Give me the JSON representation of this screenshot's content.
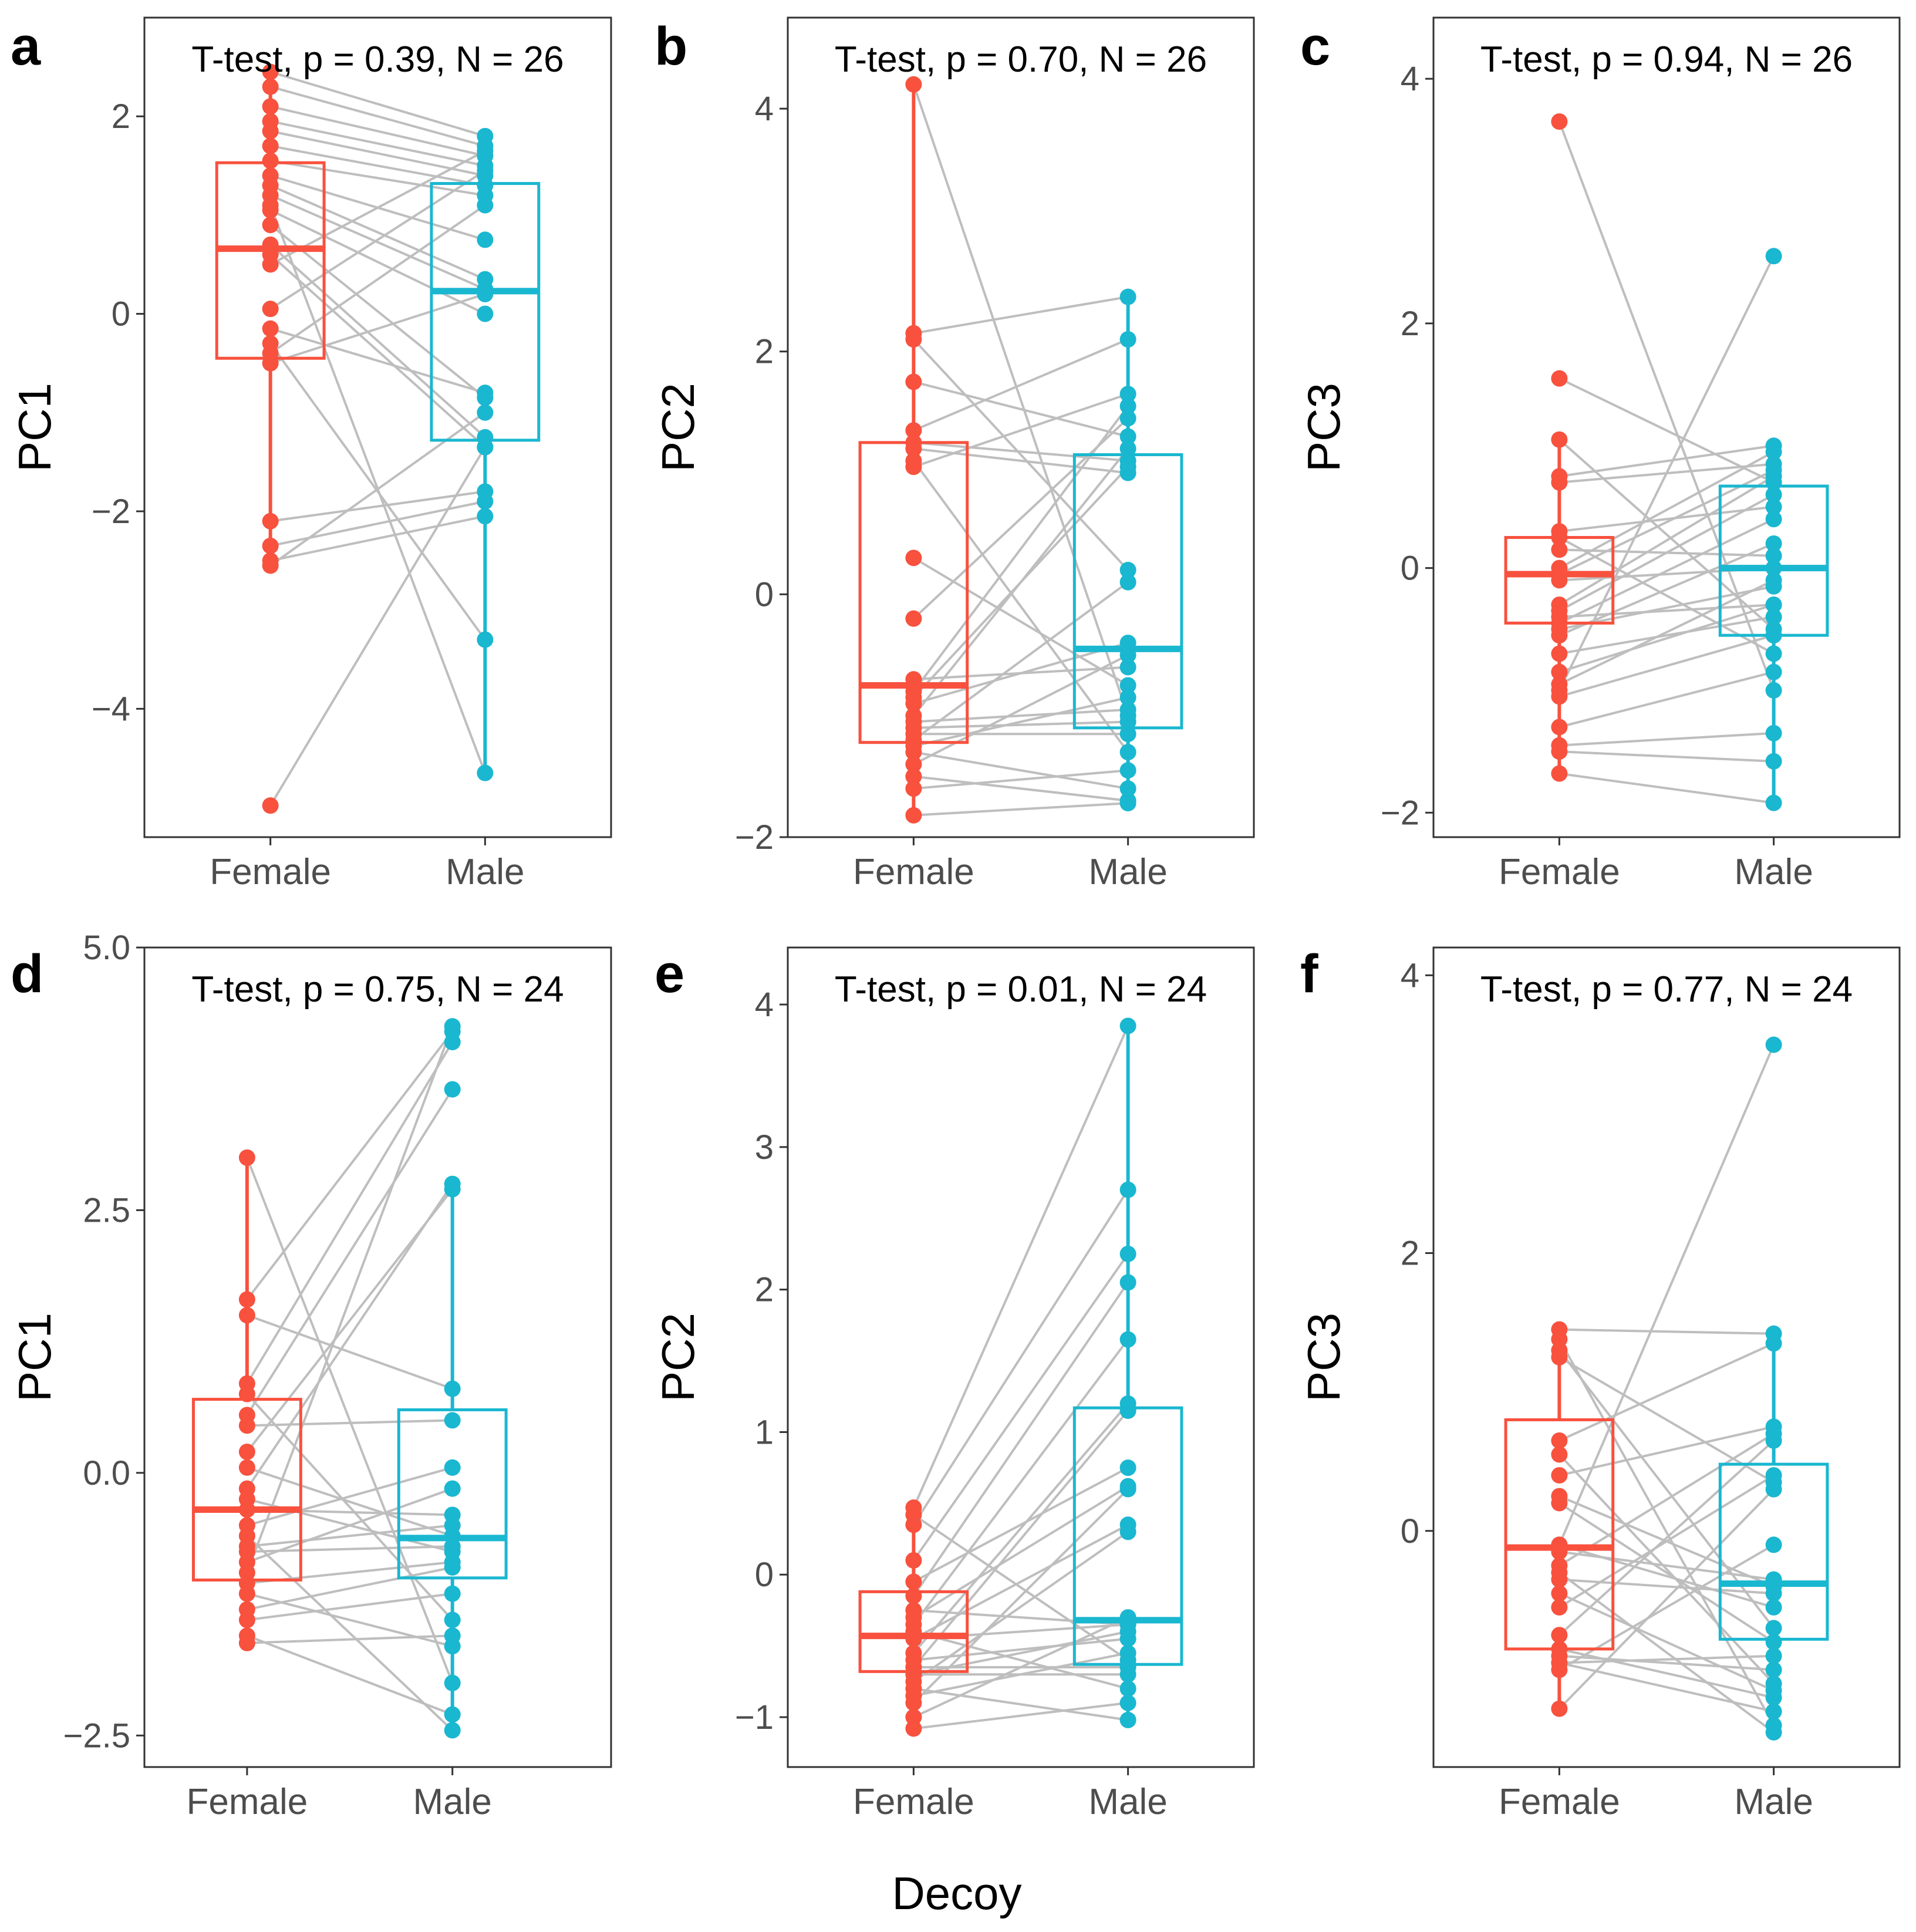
{
  "figure": {
    "xlabel_common": "Decoy",
    "groups": [
      "Female",
      "Male"
    ],
    "colors": {
      "Female": "#F8513E",
      "Male": "#1AB7D0",
      "pair_line": "#BEBEBE",
      "axis": "#333333",
      "text": "#000000"
    }
  },
  "chart_data": [
    {
      "type": "box_paired_dot",
      "panel": "a",
      "ylabel": "PC1",
      "annotation": "T-test, p =  0.39, N = 26",
      "ylim": [
        -5.3,
        3.0
      ],
      "yticks": [
        2,
        0,
        -2,
        -4
      ],
      "categories": [
        "Female",
        "Male"
      ],
      "box": {
        "Female": {
          "q1": -0.45,
          "median": 0.66,
          "q3": 1.53,
          "whisker_low": -2.55,
          "whisker_high": 2.45
        },
        "Male": {
          "q1": -1.28,
          "median": 0.23,
          "q3": 1.32,
          "whisker_low": -4.65,
          "whisker_high": 1.8
        }
      },
      "pairs": [
        [
          2.45,
          1.8
        ],
        [
          2.3,
          1.7
        ],
        [
          2.1,
          1.6
        ],
        [
          1.95,
          1.5
        ],
        [
          1.85,
          1.4
        ],
        [
          1.7,
          1.3
        ],
        [
          1.55,
          1.2
        ],
        [
          1.4,
          0.75
        ],
        [
          1.3,
          0.35
        ],
        [
          1.2,
          0.25
        ],
        [
          1.05,
          0.0
        ],
        [
          0.9,
          -0.85
        ],
        [
          0.7,
          -1.25
        ],
        [
          0.6,
          -1.35
        ],
        [
          0.5,
          1.65
        ],
        [
          0.05,
          1.45
        ],
        [
          -0.15,
          -0.8
        ],
        [
          -0.3,
          -3.3
        ],
        [
          -0.4,
          1.1
        ],
        [
          -0.5,
          0.2
        ],
        [
          -2.1,
          -1.8
        ],
        [
          -2.35,
          -1.9
        ],
        [
          -2.5,
          -2.05
        ],
        [
          -2.55,
          -1.0
        ],
        [
          -4.98,
          -1.35
        ],
        [
          1.1,
          -4.65
        ]
      ]
    },
    {
      "type": "box_paired_dot",
      "panel": "b",
      "ylabel": "PC2",
      "annotation": "T-test, p =  0.70, N = 26",
      "ylim": [
        -2.0,
        4.75
      ],
      "yticks": [
        4,
        2,
        0,
        -2
      ],
      "categories": [
        "Female",
        "Male"
      ],
      "box": {
        "Female": {
          "q1": -1.22,
          "median": -0.75,
          "q3": 1.25,
          "whisker_low": -1.82,
          "whisker_high": 4.2
        },
        "Male": {
          "q1": -1.1,
          "median": -0.45,
          "q3": 1.15,
          "whisker_low": -1.72,
          "whisker_high": 2.45
        }
      },
      "pairs": [
        [
          4.2,
          -1.0
        ],
        [
          2.15,
          2.45
        ],
        [
          2.1,
          0.2
        ],
        [
          1.75,
          1.3
        ],
        [
          1.35,
          2.1
        ],
        [
          1.25,
          1.1
        ],
        [
          1.2,
          1.0
        ],
        [
          1.1,
          -1.3
        ],
        [
          1.05,
          1.65
        ],
        [
          0.3,
          -0.75
        ],
        [
          -0.2,
          1.45
        ],
        [
          -0.7,
          -0.6
        ],
        [
          -0.8,
          1.55
        ],
        [
          -0.9,
          -0.4
        ],
        [
          -1.0,
          1.2
        ],
        [
          -1.05,
          -0.95
        ],
        [
          -1.1,
          -1.05
        ],
        [
          -1.2,
          0.1
        ],
        [
          -1.25,
          -0.85
        ],
        [
          -1.3,
          -1.6
        ],
        [
          -1.5,
          -1.7
        ],
        [
          -1.6,
          -1.45
        ],
        [
          -1.82,
          -1.72
        ],
        [
          -1.4,
          -0.5
        ],
        [
          -0.85,
          1.05
        ],
        [
          -1.15,
          -1.15
        ]
      ]
    },
    {
      "type": "box_paired_dot",
      "panel": "c",
      "ylabel": "PC3",
      "annotation": "T-test, p =  0.94, N = 26",
      "ylim": [
        -2.2,
        4.5
      ],
      "yticks": [
        4,
        2,
        0,
        -2
      ],
      "categories": [
        "Female",
        "Male"
      ],
      "box": {
        "Female": {
          "q1": -0.45,
          "median": -0.05,
          "q3": 0.25,
          "whisker_low": -1.68,
          "whisker_high": 1.05
        },
        "Male": {
          "q1": -0.55,
          "median": 0.0,
          "q3": 0.67,
          "whisker_low": -1.92,
          "whisker_high": 1.05
        }
      },
      "pairs": [
        [
          3.65,
          -1.0
        ],
        [
          1.55,
          0.7
        ],
        [
          1.05,
          -0.5
        ],
        [
          0.75,
          1.0
        ],
        [
          0.7,
          0.85
        ],
        [
          0.3,
          0.5
        ],
        [
          0.25,
          -0.7
        ],
        [
          0.15,
          0.1
        ],
        [
          0.0,
          0.95
        ],
        [
          -0.05,
          0.8
        ],
        [
          -0.1,
          0.0
        ],
        [
          -0.35,
          0.6
        ],
        [
          -0.4,
          -0.3
        ],
        [
          -0.45,
          0.4
        ],
        [
          -0.5,
          -0.15
        ],
        [
          -0.55,
          0.2
        ],
        [
          -0.7,
          -0.4
        ],
        [
          -0.85,
          -0.3
        ],
        [
          -1.0,
          2.55
        ],
        [
          -1.05,
          -0.55
        ],
        [
          -1.3,
          -0.85
        ],
        [
          -1.45,
          -1.35
        ],
        [
          -1.5,
          -1.58
        ],
        [
          -1.68,
          -1.92
        ],
        [
          -0.95,
          -0.1
        ],
        [
          -0.3,
          0.75
        ]
      ]
    },
    {
      "type": "box_paired_dot",
      "panel": "d",
      "ylabel": "PC1",
      "annotation": "T-test, p =  0.75, N = 24",
      "ylim": [
        -2.8,
        5.0
      ],
      "yticks": [
        5.0,
        2.5,
        0.0,
        -2.5
      ],
      "categories": [
        "Female",
        "Male"
      ],
      "box": {
        "Female": {
          "q1": -1.02,
          "median": -0.35,
          "q3": 0.7,
          "whisker_low": -1.62,
          "whisker_high": 3.0
        },
        "Male": {
          "q1": -1.0,
          "median": -0.62,
          "q3": 0.6,
          "whisker_low": -2.45,
          "whisker_high": 2.75
        }
      },
      "pairs": [
        [
          3.0,
          -2.0
        ],
        [
          1.65,
          4.2
        ],
        [
          1.5,
          0.8
        ],
        [
          0.85,
          4.1
        ],
        [
          0.75,
          -1.4
        ],
        [
          0.55,
          3.65
        ],
        [
          0.45,
          0.5
        ],
        [
          0.2,
          2.7
        ],
        [
          0.05,
          -0.6
        ],
        [
          -0.15,
          2.75
        ],
        [
          -0.35,
          -0.4
        ],
        [
          -0.5,
          0.05
        ],
        [
          -0.6,
          -2.45
        ],
        [
          -0.75,
          -0.7
        ],
        [
          -0.85,
          -0.15
        ],
        [
          -0.95,
          4.25
        ],
        [
          -1.05,
          -0.85
        ],
        [
          -1.15,
          -1.65
        ],
        [
          -1.3,
          -0.9
        ],
        [
          -1.4,
          -1.15
        ],
        [
          -1.55,
          -2.3
        ],
        [
          -1.62,
          -1.55
        ],
        [
          -0.7,
          -0.5
        ],
        [
          -0.25,
          -0.75
        ]
      ]
    },
    {
      "type": "box_paired_dot",
      "panel": "e",
      "ylabel": "PC2",
      "annotation": "T-test, p =  0.01, N = 24",
      "ylim": [
        -1.35,
        4.4
      ],
      "yticks": [
        4,
        3,
        2,
        1,
        0,
        -1
      ],
      "categories": [
        "Female",
        "Male"
      ],
      "box": {
        "Female": {
          "q1": -0.68,
          "median": -0.43,
          "q3": -0.12,
          "whisker_low": -1.08,
          "whisker_high": 0.47
        },
        "Male": {
          "q1": -0.63,
          "median": -0.32,
          "q3": 1.17,
          "whisker_low": -1.02,
          "whisker_high": 3.85
        }
      },
      "pairs": [
        [
          0.47,
          3.85
        ],
        [
          0.42,
          -0.6
        ],
        [
          0.35,
          2.7
        ],
        [
          0.1,
          2.25
        ],
        [
          -0.05,
          0.75
        ],
        [
          -0.15,
          2.05
        ],
        [
          -0.25,
          -0.35
        ],
        [
          -0.35,
          1.65
        ],
        [
          -0.4,
          -0.8
        ],
        [
          -0.45,
          0.35
        ],
        [
          -0.55,
          1.2
        ],
        [
          -0.6,
          -0.45
        ],
        [
          -0.65,
          1.15
        ],
        [
          -0.7,
          -0.7
        ],
        [
          -0.75,
          0.3
        ],
        [
          -0.8,
          -1.02
        ],
        [
          -0.85,
          -0.55
        ],
        [
          -0.9,
          0.6
        ],
        [
          -1.0,
          -0.3
        ],
        [
          -1.08,
          -0.9
        ],
        [
          -0.7,
          -0.4
        ],
        [
          -0.65,
          -0.65
        ],
        [
          -0.45,
          -0.35
        ],
        [
          -0.3,
          0.62
        ]
      ]
    },
    {
      "type": "box_paired_dot",
      "panel": "f",
      "ylabel": "PC3",
      "annotation": "T-test, p =  0.77, N = 24",
      "ylim": [
        -1.7,
        4.2
      ],
      "yticks": [
        4,
        2,
        0
      ],
      "categories": [
        "Female",
        "Male"
      ],
      "box": {
        "Female": {
          "q1": -0.85,
          "median": -0.12,
          "q3": 0.8,
          "whisker_low": -1.28,
          "whisker_high": 1.45
        },
        "Male": {
          "q1": -0.78,
          "median": -0.38,
          "q3": 0.48,
          "whisker_low": -1.45,
          "whisker_high": 1.42
        }
      },
      "pairs": [
        [
          1.45,
          1.42
        ],
        [
          1.38,
          -1.4
        ],
        [
          1.3,
          -0.7
        ],
        [
          1.25,
          0.35
        ],
        [
          0.65,
          1.35
        ],
        [
          0.55,
          -1.1
        ],
        [
          0.4,
          0.75
        ],
        [
          0.25,
          -0.4
        ],
        [
          0.2,
          -0.8
        ],
        [
          -0.1,
          3.5
        ],
        [
          -0.15,
          -0.35
        ],
        [
          -0.25,
          0.7
        ],
        [
          -0.35,
          -0.45
        ],
        [
          -0.45,
          -1.15
        ],
        [
          -0.55,
          0.4
        ],
        [
          -0.85,
          -1.2
        ],
        [
          -0.9,
          -1.0
        ],
        [
          -0.95,
          -1.3
        ],
        [
          -1.0,
          -0.1
        ],
        [
          -1.28,
          0.3
        ],
        [
          -0.75,
          0.65
        ],
        [
          -0.3,
          -1.45
        ],
        [
          -0.1,
          -0.55
        ],
        [
          -0.95,
          -0.9
        ]
      ]
    }
  ]
}
